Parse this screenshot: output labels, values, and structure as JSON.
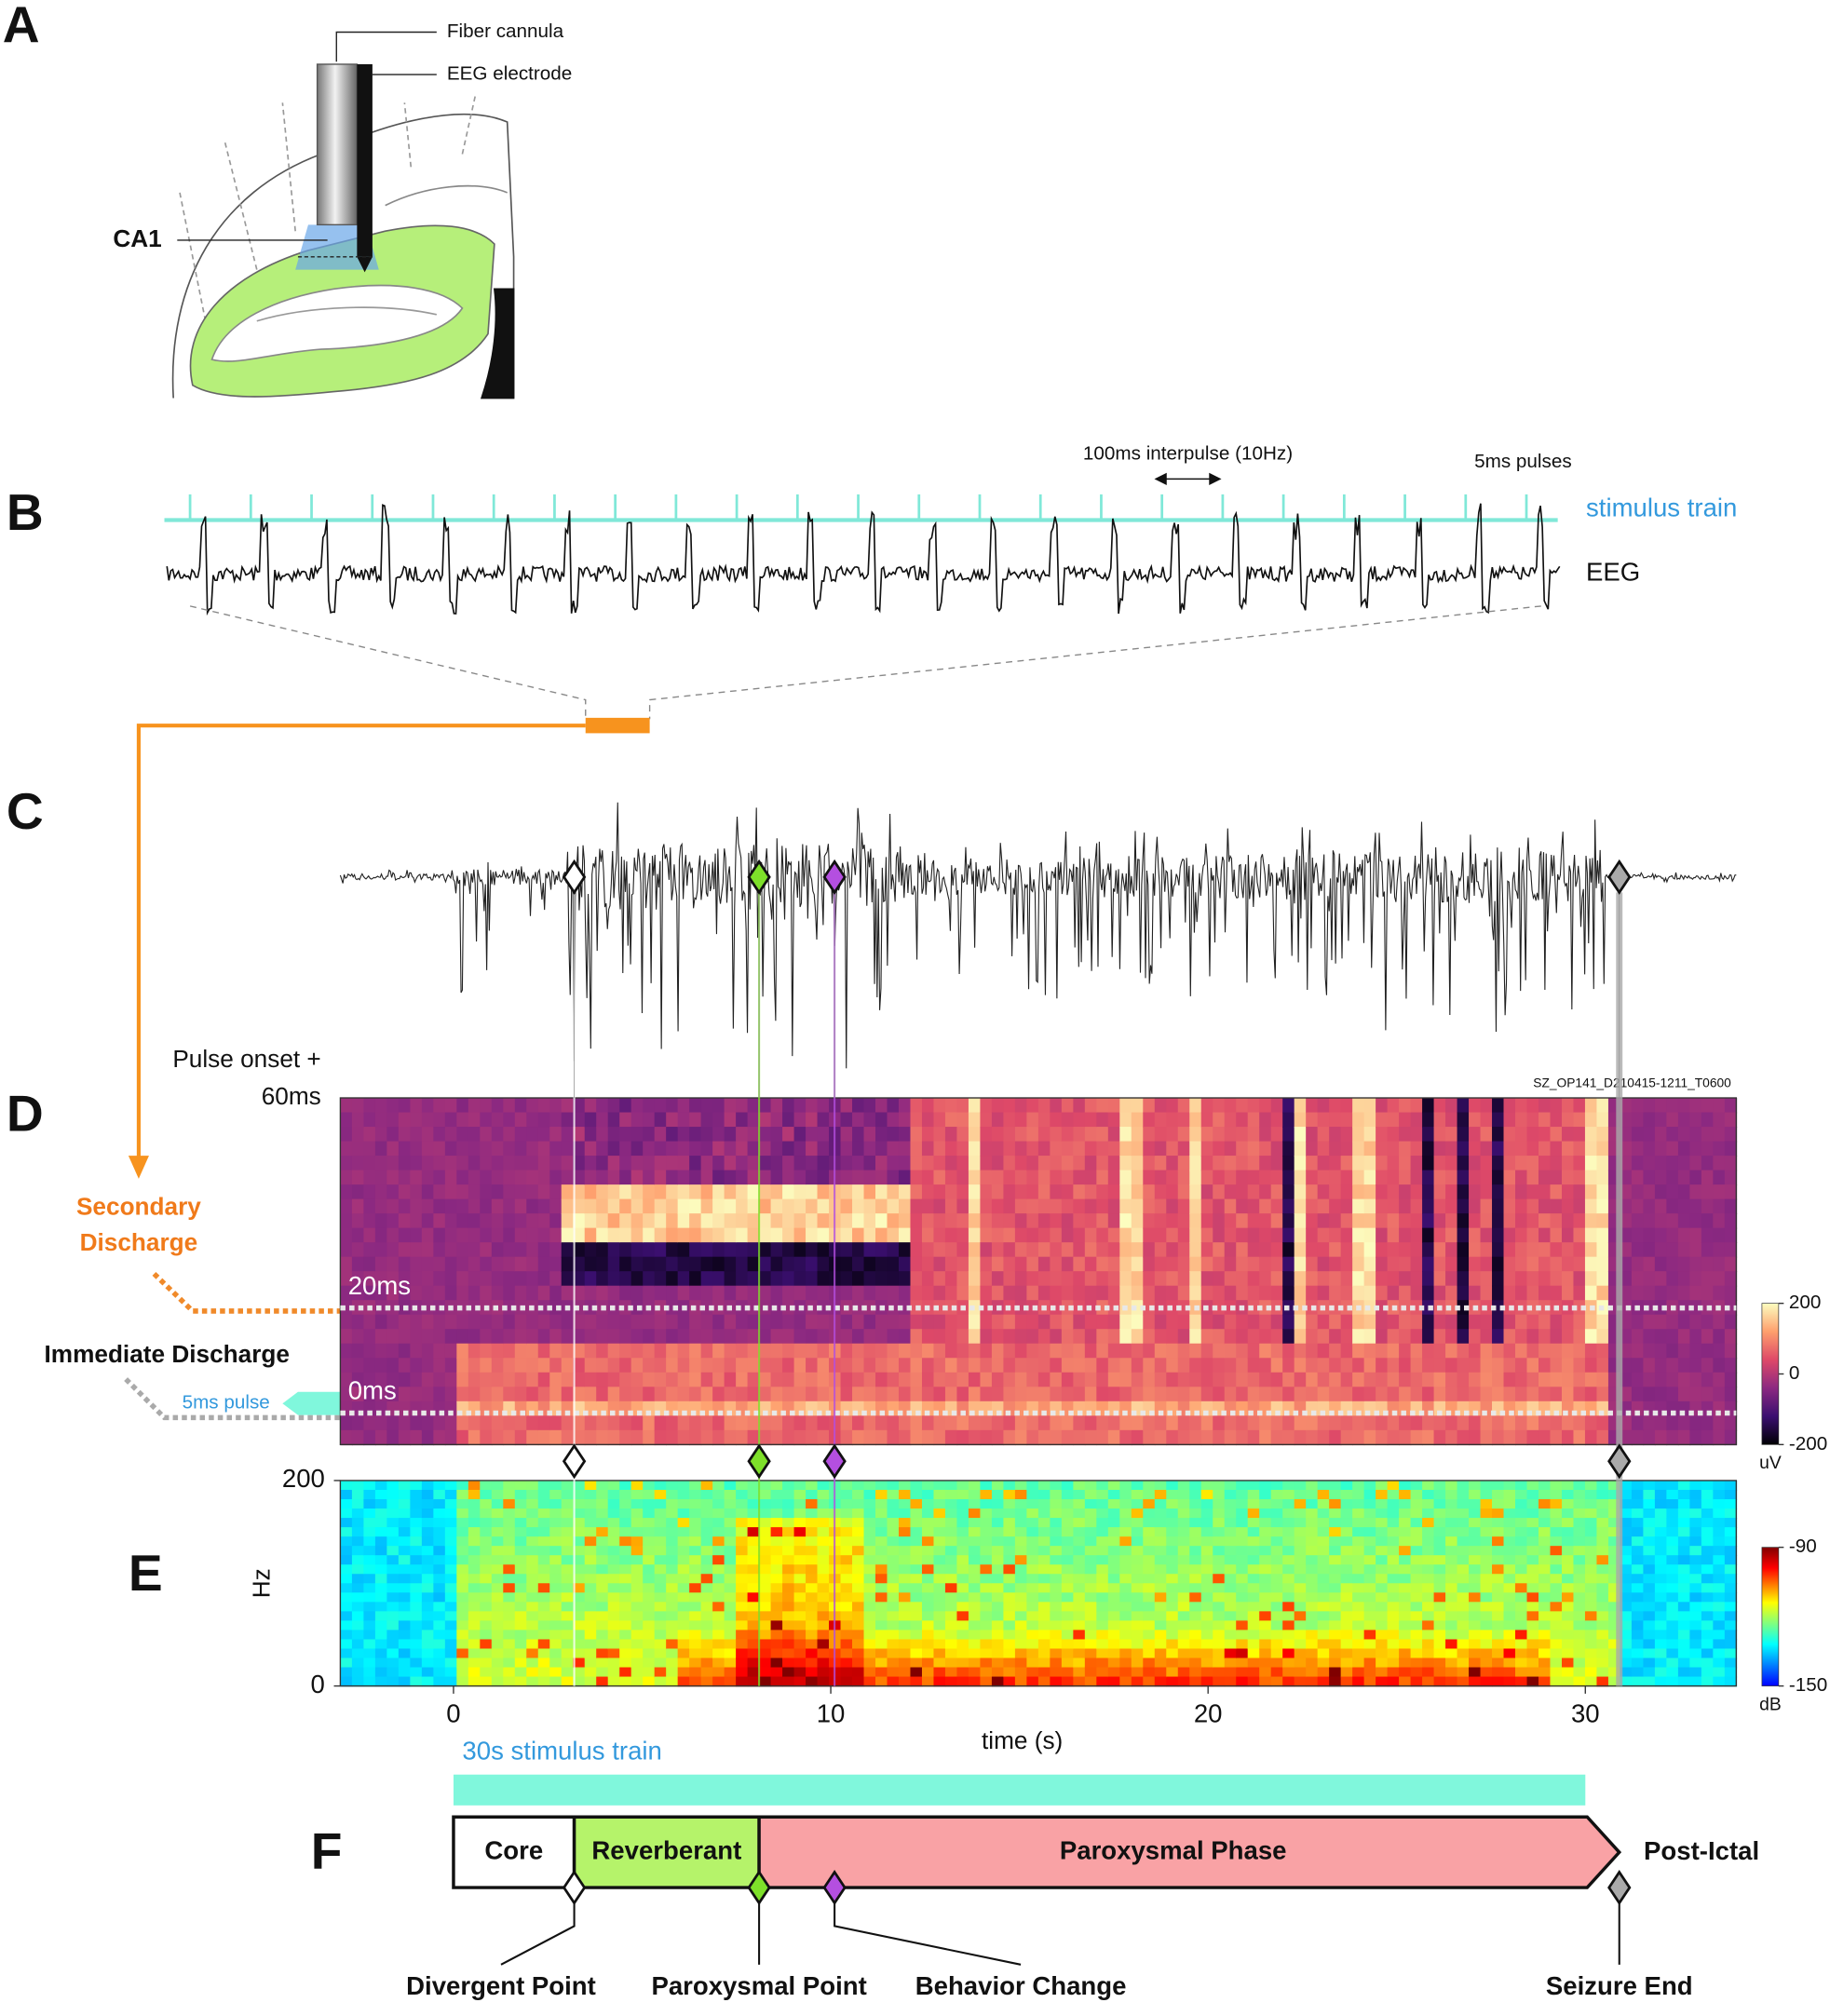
{
  "panel_labels": [
    "A",
    "B",
    "C",
    "D",
    "E",
    "F"
  ],
  "panel_a": {
    "fiber_cannula": "Fiber cannula",
    "eeg_electrode": "EEG electrode",
    "region": "CA1"
  },
  "panel_b": {
    "interpulse": "100ms interpulse (10Hz)",
    "pulse_width": "5ms pulses",
    "stimulus_label": "stimulus train",
    "eeg_label": "EEG"
  },
  "time_axis": {
    "label": "time (s)",
    "xlim": [
      -3,
      34
    ],
    "xticks": [
      0,
      10,
      20,
      30
    ]
  },
  "zoom_window": [
    3.5,
    5.2
  ],
  "panel_d": {
    "ylabel": "Pulse onset +",
    "ylim": [
      -6,
      60
    ],
    "yticks": [
      {
        "value": 60,
        "label": "60ms"
      },
      {
        "value": 20,
        "label": "20ms"
      },
      {
        "value": 0,
        "label": "0ms"
      }
    ],
    "recording_id": "SZ_OP141_D210415-1211_T0600",
    "secondary_discharge": [
      "Secondary",
      "Discharge"
    ],
    "immediate_discharge": "Immediate Discharge",
    "pulse": "5ms pulse",
    "colorbar": {
      "lim": [
        -200,
        200
      ],
      "ticks": [
        200,
        0,
        -200
      ],
      "unit": "uV"
    }
  },
  "panel_e": {
    "ylabel": "Hz",
    "ylim": [
      0,
      200
    ],
    "yticks": [
      0,
      200
    ],
    "colorbar": {
      "lim": [
        -150,
        -90
      ],
      "ticks": [
        -90,
        -150
      ],
      "unit": "dB"
    }
  },
  "stimulus": {
    "label": "30s stimulus train",
    "start": 0,
    "end": 30,
    "color": "#80f7dc"
  },
  "events": [
    {
      "name": "Divergent Point",
      "time": 3.2,
      "color": "#ffffff"
    },
    {
      "name": "Paroxysmal Point",
      "time": 8.1,
      "color": "#7ee02a"
    },
    {
      "name": "Behavior Change",
      "time": 10.1,
      "color": "#b44fe0"
    },
    {
      "name": "Seizure End",
      "time": 30.9,
      "color": "#aaaaaa"
    }
  ],
  "phases": [
    {
      "name": "Core",
      "start": 0,
      "end": 3.2,
      "color": "#ffffff"
    },
    {
      "name": "Reverberant",
      "start": 3.2,
      "end": 8.1,
      "color": "#b5f36a"
    },
    {
      "name": "Paroxysmal Phase",
      "start": 8.1,
      "end": 30.9,
      "color": "#f9a2a5"
    }
  ],
  "post_phase": "Post-Ictal"
}
